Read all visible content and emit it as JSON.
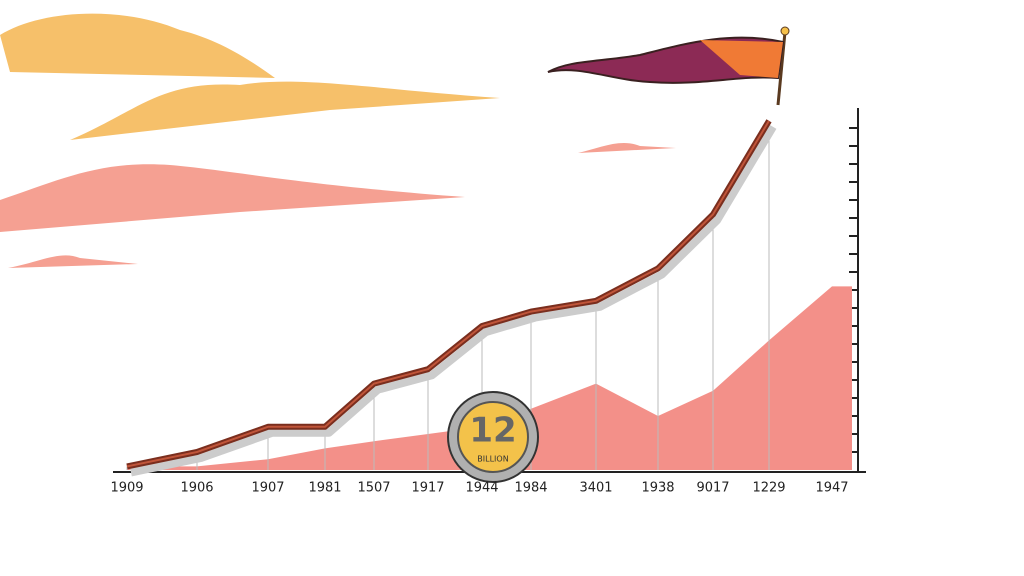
{
  "chart_data": {
    "type": "line",
    "categories": [
      "1909",
      "1906",
      "1907",
      "1981",
      "1507",
      "1917",
      "1944",
      "1984",
      "3401",
      "1938",
      "9017",
      "1229",
      "1947"
    ],
    "series": [
      {
        "color": "#7a2e1e",
        "values": [
          1,
          5,
          12,
          12,
          24,
          28,
          40,
          44,
          47,
          56,
          71,
          97,
          null
        ]
      },
      {
        "color": "#f39089",
        "values": [
          1,
          1,
          3,
          6,
          8,
          10,
          12,
          17,
          24,
          15,
          22,
          36,
          51
        ]
      }
    ],
    "ylim": [
      0,
      100
    ],
    "yticks": [
      5,
      10,
      15,
      20,
      25,
      30,
      35,
      40,
      45,
      50,
      55,
      60,
      65,
      70,
      75,
      80,
      85,
      90,
      95
    ],
    "coin_value": "12",
    "coin_text": "BILLION"
  }
}
